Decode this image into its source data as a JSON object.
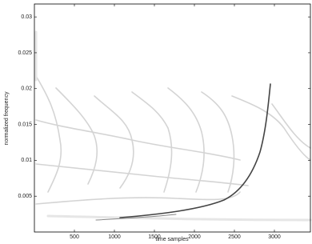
{
  "chart_data": {
    "type": "image",
    "x_label": "time samples",
    "y_label": "normalized frequency",
    "xlim": [
      0,
      3450
    ],
    "xticks": [
      500,
      1000,
      1500,
      2000,
      2500,
      3000
    ],
    "ylim": [
      0,
      0.0318
    ],
    "yticks": [
      0.005,
      0.01,
      0.015,
      0.02,
      0.025,
      0.03
    ]
  }
}
